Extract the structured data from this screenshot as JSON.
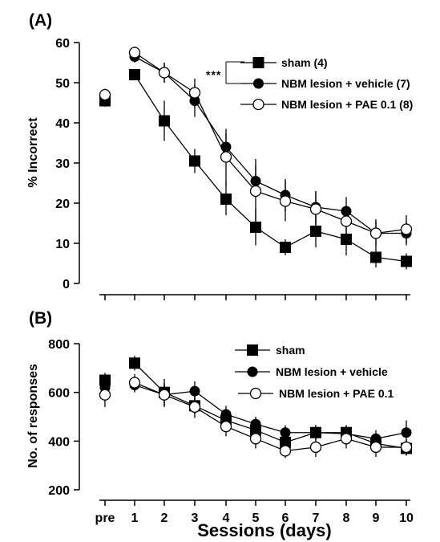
{
  "chart_data": [
    {
      "panel_label": "(A)",
      "type": "line",
      "ylabel": "% Incorrect",
      "ylim": [
        0,
        60
      ],
      "yticks": [
        "0",
        "10",
        "20",
        "30",
        "40",
        "50",
        "60"
      ],
      "x": [
        "pre",
        "1",
        "2",
        "3",
        "4",
        "5",
        "6",
        "7",
        "8",
        "9",
        "10"
      ],
      "significance": "***",
      "legend_position": "top-right",
      "series": [
        {
          "name": "sham (4)",
          "marker": "filled-square",
          "values": [
            45.5,
            52,
            40.5,
            30.5,
            21,
            14,
            9,
            13,
            11,
            6.5,
            5.5
          ],
          "errors": [
            1.5,
            1,
            5,
            3,
            4,
            4.5,
            2,
            4,
            4,
            2.5,
            2
          ]
        },
        {
          "name": "NBM lesion + vehicle (7)",
          "marker": "filled-circle",
          "values": [
            46.5,
            56.5,
            52.5,
            45.5,
            34,
            25.5,
            22,
            19,
            18,
            12.5,
            12.5
          ],
          "errors": [
            1.5,
            1.5,
            2.5,
            4,
            3.5,
            4,
            4,
            4,
            3.5,
            3,
            3
          ]
        },
        {
          "name": "NBM lesion + PAE 0.1 (8)",
          "marker": "open-circle",
          "values": [
            47,
            57.5,
            52.5,
            47.5,
            31.5,
            23,
            20.5,
            18.5,
            15.5,
            12.5,
            13.5
          ],
          "errors": [
            1.5,
            1.5,
            2.5,
            3.5,
            7,
            8,
            5,
            4.5,
            3.5,
            3.5,
            3.5
          ]
        }
      ]
    },
    {
      "panel_label": "(B)",
      "type": "line",
      "ylabel": "No. of responses",
      "xlabel": "Sessions (days)",
      "ylim": [
        200,
        800
      ],
      "yticks": [
        "200",
        "400",
        "600",
        "800"
      ],
      "x": [
        "pre",
        "1",
        "2",
        "3",
        "4",
        "5",
        "6",
        "7",
        "8",
        "9",
        "10"
      ],
      "legend_position": "top-right",
      "series": [
        {
          "name": "sham",
          "marker": "filled-square",
          "values": [
            650,
            720,
            600,
            545,
            485,
            445,
            395,
            435,
            435,
            390,
            370
          ],
          "errors": [
            30,
            30,
            55,
            35,
            40,
            35,
            40,
            30,
            30,
            30,
            30
          ]
        },
        {
          "name": "NBM lesion + vehicle",
          "marker": "filled-circle",
          "values": [
            620,
            630,
            590,
            605,
            510,
            470,
            435,
            435,
            430,
            410,
            435
          ],
          "errors": [
            40,
            30,
            45,
            40,
            35,
            30,
            30,
            30,
            35,
            35,
            50
          ]
        },
        {
          "name": "NBM lesion + PAE 0.1",
          "marker": "open-circle",
          "values": [
            590,
            640,
            590,
            540,
            460,
            410,
            360,
            375,
            410,
            375,
            375
          ],
          "errors": [
            50,
            35,
            50,
            45,
            40,
            40,
            30,
            40,
            40,
            40,
            30
          ]
        }
      ]
    }
  ]
}
